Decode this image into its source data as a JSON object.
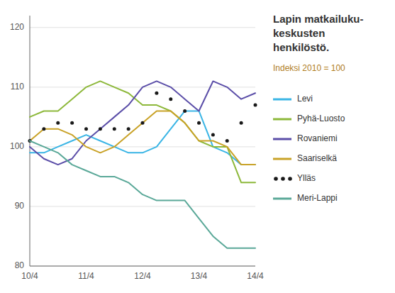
{
  "chart_data": {
    "type": "line",
    "title": [
      "Lapin matkailuku-",
      "keskusten",
      "henkilöstö."
    ],
    "subtitle": "Indeksi 2010 = 100",
    "categories": [
      "10/4",
      null,
      null,
      null,
      "11/4",
      null,
      null,
      null,
      "12/4",
      null,
      null,
      null,
      "13/4",
      null,
      null,
      null,
      "14/4"
    ],
    "ylim": [
      80,
      122
    ],
    "yticks": [
      80,
      90,
      100,
      110,
      120
    ],
    "grid": true,
    "legend": "right",
    "series": [
      {
        "name": "Levi",
        "color": "#3ab5e5",
        "values": [
          99,
          99,
          100,
          101,
          102,
          101,
          100,
          99,
          99,
          100,
          103,
          106,
          106,
          100,
          99,
          97,
          97
        ]
      },
      {
        "name": "Pyhä-Luosto",
        "color": "#8db83a",
        "values": [
          105,
          106,
          106,
          108,
          110,
          111,
          110,
          109,
          107,
          107,
          106,
          104,
          101,
          100,
          100,
          94,
          94
        ]
      },
      {
        "name": "Rovaniemi",
        "color": "#5b4ea8",
        "values": [
          100,
          98,
          97,
          98,
          101,
          103,
          105,
          107,
          110,
          111,
          110,
          108,
          106,
          111,
          110,
          108,
          109
        ]
      },
      {
        "name": "Saariselkä",
        "color": "#c9a227",
        "values": [
          101,
          103,
          103,
          102,
          100,
          99,
          100,
          102,
          104,
          106,
          106,
          104,
          101,
          101,
          100,
          97,
          97
        ]
      },
      {
        "name": "Ylläs",
        "color": "#1a1a1a",
        "marker": "circle",
        "line_style": "none",
        "values": [
          101,
          103,
          104,
          104,
          103,
          103,
          103,
          103,
          104,
          109,
          108,
          106,
          104,
          102,
          101,
          104,
          107
        ]
      },
      {
        "name": "Meri-Lappi",
        "color": "#5aA898",
        "values": [
          101,
          100,
          99,
          97,
          96,
          95,
          95,
          94,
          92,
          91,
          91,
          91,
          88,
          85,
          83,
          83,
          83
        ]
      }
    ]
  }
}
